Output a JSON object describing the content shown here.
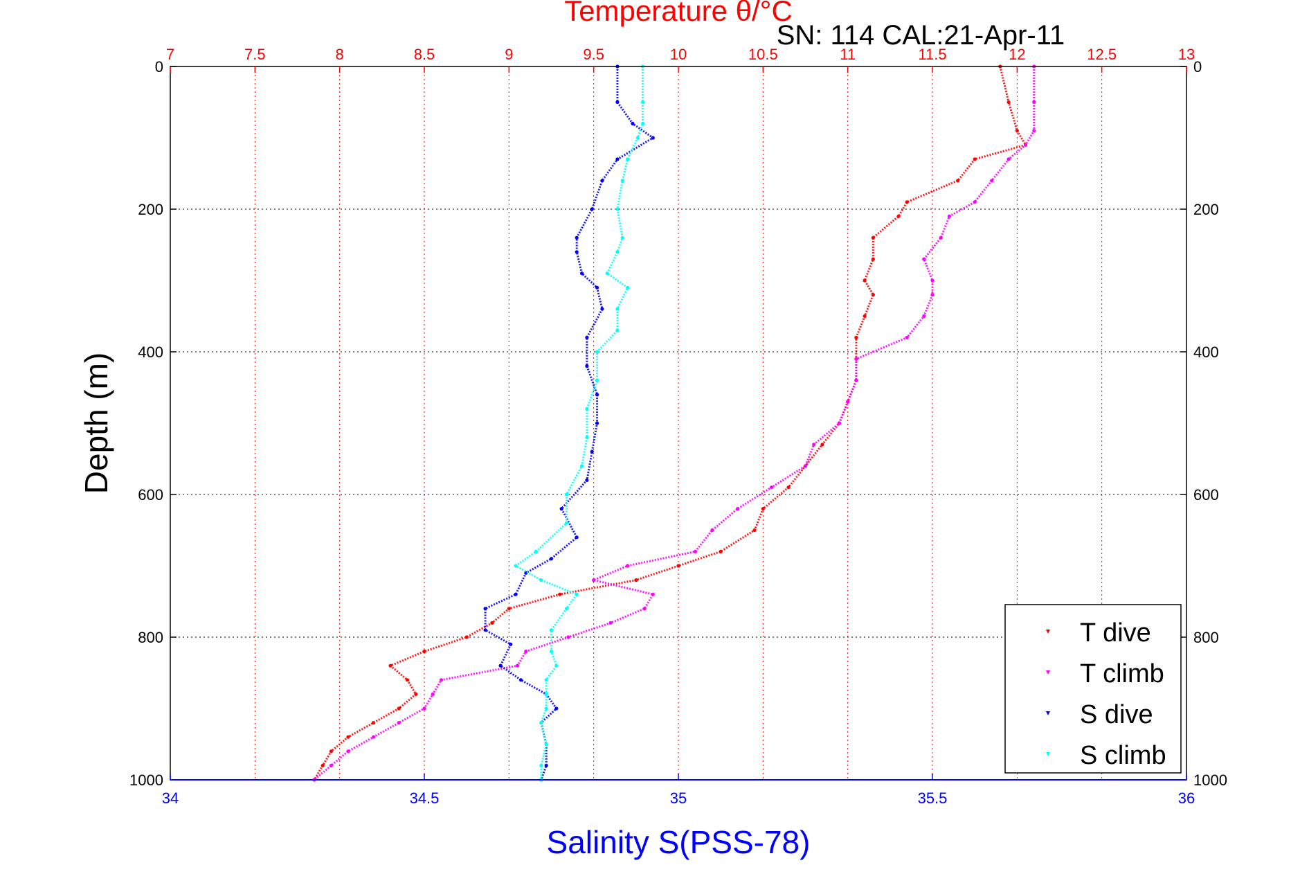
{
  "chart_data": {
    "type": "scatter",
    "title_top": "Temperature θ/°C",
    "annotation": "SN: 114  CAL:21-Apr-11",
    "ylabel": "Depth (m)",
    "xlabel_bottom": "Salinity S(PSS-78)",
    "ylim": [
      0,
      1000
    ],
    "y_reversed": true,
    "x_temperature_lim": [
      7,
      13
    ],
    "x_salinity_lim": [
      34,
      36
    ],
    "y_ticks": [
      0,
      200,
      400,
      600,
      800,
      1000
    ],
    "temperature_ticks": [
      7,
      7.5,
      8,
      8.5,
      9,
      9.5,
      10,
      10.5,
      11,
      11.5,
      12,
      12.5,
      13
    ],
    "salinity_ticks": [
      34,
      34.5,
      35,
      35.5,
      36
    ],
    "grid": true,
    "legend_position": "bottom-right",
    "colors": {
      "temperature_axis": "#ff0000",
      "salinity_axis": "#0000ff",
      "grid_red": "#ff0000",
      "grid_black": "#000000"
    },
    "series": [
      {
        "name": "T dive",
        "axis": "temperature",
        "color": "#ff0000",
        "depth": [
          0,
          50,
          90,
          110,
          130,
          160,
          190,
          210,
          240,
          270,
          300,
          320,
          350,
          380,
          410,
          440,
          470,
          500,
          530,
          560,
          590,
          620,
          650,
          680,
          700,
          720,
          740,
          760,
          780,
          800,
          820,
          840,
          860,
          880,
          900,
          920,
          940,
          960,
          980,
          1000
        ],
        "values": [
          11.9,
          11.95,
          12.0,
          12.05,
          11.75,
          11.65,
          11.35,
          11.3,
          11.15,
          11.15,
          11.1,
          11.15,
          11.1,
          11.05,
          11.05,
          11.05,
          11.0,
          10.95,
          10.85,
          10.75,
          10.65,
          10.5,
          10.45,
          10.25,
          10.0,
          9.75,
          9.3,
          9.0,
          8.9,
          8.75,
          8.5,
          8.3,
          8.4,
          8.45,
          8.35,
          8.2,
          8.05,
          7.95,
          7.9,
          7.85
        ]
      },
      {
        "name": "T climb",
        "axis": "temperature",
        "color": "#ff00ff",
        "depth": [
          0,
          50,
          90,
          110,
          130,
          160,
          190,
          210,
          240,
          270,
          300,
          320,
          350,
          380,
          410,
          440,
          470,
          500,
          530,
          560,
          590,
          620,
          650,
          680,
          700,
          720,
          740,
          760,
          780,
          800,
          820,
          840,
          860,
          880,
          900,
          920,
          940,
          960,
          980,
          1000
        ],
        "values": [
          12.1,
          12.1,
          12.1,
          12.05,
          11.95,
          11.85,
          11.75,
          11.6,
          11.55,
          11.45,
          11.5,
          11.5,
          11.45,
          11.35,
          11.05,
          11.05,
          11.0,
          10.95,
          10.8,
          10.75,
          10.55,
          10.35,
          10.2,
          10.1,
          9.7,
          9.5,
          9.85,
          9.8,
          9.6,
          9.35,
          9.1,
          9.05,
          8.6,
          8.55,
          8.5,
          8.35,
          8.2,
          8.05,
          7.95,
          7.85
        ]
      },
      {
        "name": "S dive",
        "axis": "salinity",
        "color": "#0000ff",
        "depth": [
          0,
          50,
          80,
          100,
          130,
          160,
          200,
          240,
          260,
          290,
          310,
          340,
          380,
          420,
          460,
          500,
          540,
          580,
          620,
          660,
          690,
          710,
          740,
          760,
          790,
          810,
          840,
          860,
          880,
          900,
          920,
          950,
          980,
          1000
        ],
        "values": [
          34.88,
          34.88,
          34.91,
          34.95,
          34.88,
          34.85,
          34.83,
          34.8,
          34.8,
          34.81,
          34.84,
          34.85,
          34.82,
          34.82,
          34.84,
          34.84,
          34.83,
          34.82,
          34.77,
          34.8,
          34.75,
          34.7,
          34.68,
          34.62,
          34.62,
          34.67,
          34.65,
          34.69,
          34.74,
          34.76,
          34.73,
          34.74,
          34.74,
          34.73
        ]
      },
      {
        "name": "S climb",
        "axis": "salinity",
        "color": "#00ffff",
        "depth": [
          0,
          50,
          80,
          100,
          130,
          160,
          200,
          240,
          260,
          290,
          310,
          340,
          370,
          400,
          440,
          480,
          520,
          560,
          600,
          640,
          680,
          700,
          720,
          740,
          760,
          790,
          820,
          840,
          860,
          880,
          900,
          920,
          950,
          980,
          1000
        ],
        "values": [
          34.93,
          34.93,
          34.93,
          34.92,
          34.9,
          34.89,
          34.88,
          34.89,
          34.88,
          34.86,
          34.9,
          34.88,
          34.88,
          34.84,
          34.84,
          34.82,
          34.82,
          34.81,
          34.78,
          34.78,
          34.72,
          34.68,
          34.73,
          34.8,
          34.78,
          34.75,
          34.75,
          34.76,
          34.74,
          34.74,
          34.74,
          34.73,
          34.74,
          34.73,
          34.73
        ]
      }
    ]
  }
}
